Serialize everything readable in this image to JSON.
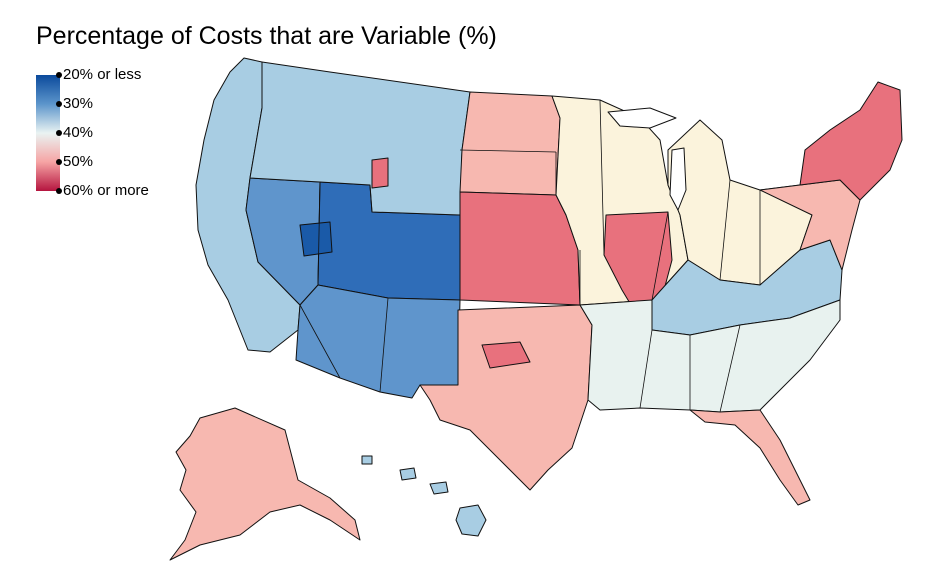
{
  "title": "Percentage of Costs that are Variable (%)",
  "legend": {
    "labels": [
      "20% or less",
      "30%",
      "40%",
      "50%",
      "60% or more"
    ],
    "colors": [
      "#0b4a9c",
      "#5c95cb",
      "#e9f3f2",
      "#f6a4a4",
      "#b5153f"
    ]
  },
  "colors": {
    "deep_blue": "#2f6db8",
    "blue": "#5f95cc",
    "light_blue": "#a8cde3",
    "pale": "#e8f2ef",
    "cream": "#fbf3dc",
    "pink": "#f7b8b0",
    "red": "#e8717d",
    "deep_red": "#c62c50",
    "water": "#ffffff"
  },
  "regions": [
    {
      "name": "west-coast",
      "color": "light_blue"
    },
    {
      "name": "great-basin",
      "color": "blue"
    },
    {
      "name": "utah-colorado",
      "color": "deep_blue"
    },
    {
      "name": "southwest",
      "color": "blue"
    },
    {
      "name": "northern-rockies",
      "color": "light_blue"
    },
    {
      "name": "northern-plains",
      "color": "pink"
    },
    {
      "name": "central-plains",
      "color": "red"
    },
    {
      "name": "southern-plains",
      "color": "pink"
    },
    {
      "name": "midwest",
      "color": "cream"
    },
    {
      "name": "corn-belt",
      "color": "red"
    },
    {
      "name": "great-lakes",
      "color": "cream"
    },
    {
      "name": "appalachia",
      "color": "light_blue"
    },
    {
      "name": "southeast",
      "color": "pale"
    },
    {
      "name": "florida",
      "color": "pink"
    },
    {
      "name": "mid-atlantic",
      "color": "pink"
    },
    {
      "name": "new-england",
      "color": "red"
    },
    {
      "name": "alaska",
      "color": "pink"
    },
    {
      "name": "hawaii",
      "color": "light_blue"
    }
  ]
}
